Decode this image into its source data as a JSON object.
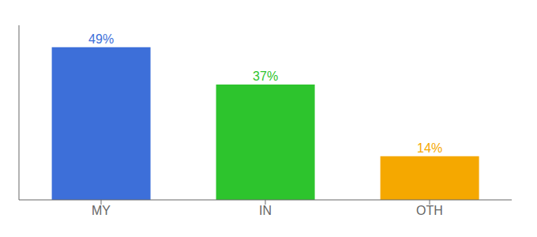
{
  "chart_data": {
    "type": "bar",
    "categories": [
      "MY",
      "IN",
      "OTH"
    ],
    "values": [
      49,
      37,
      14
    ],
    "value_labels": [
      "49%",
      "37%",
      "14%"
    ],
    "data_labels": true,
    "colors": [
      "#3d6fd9",
      "#2dc42d",
      "#f5a800"
    ],
    "ylim": [
      0,
      56
    ],
    "grid": false,
    "tick_labels": "x"
  }
}
